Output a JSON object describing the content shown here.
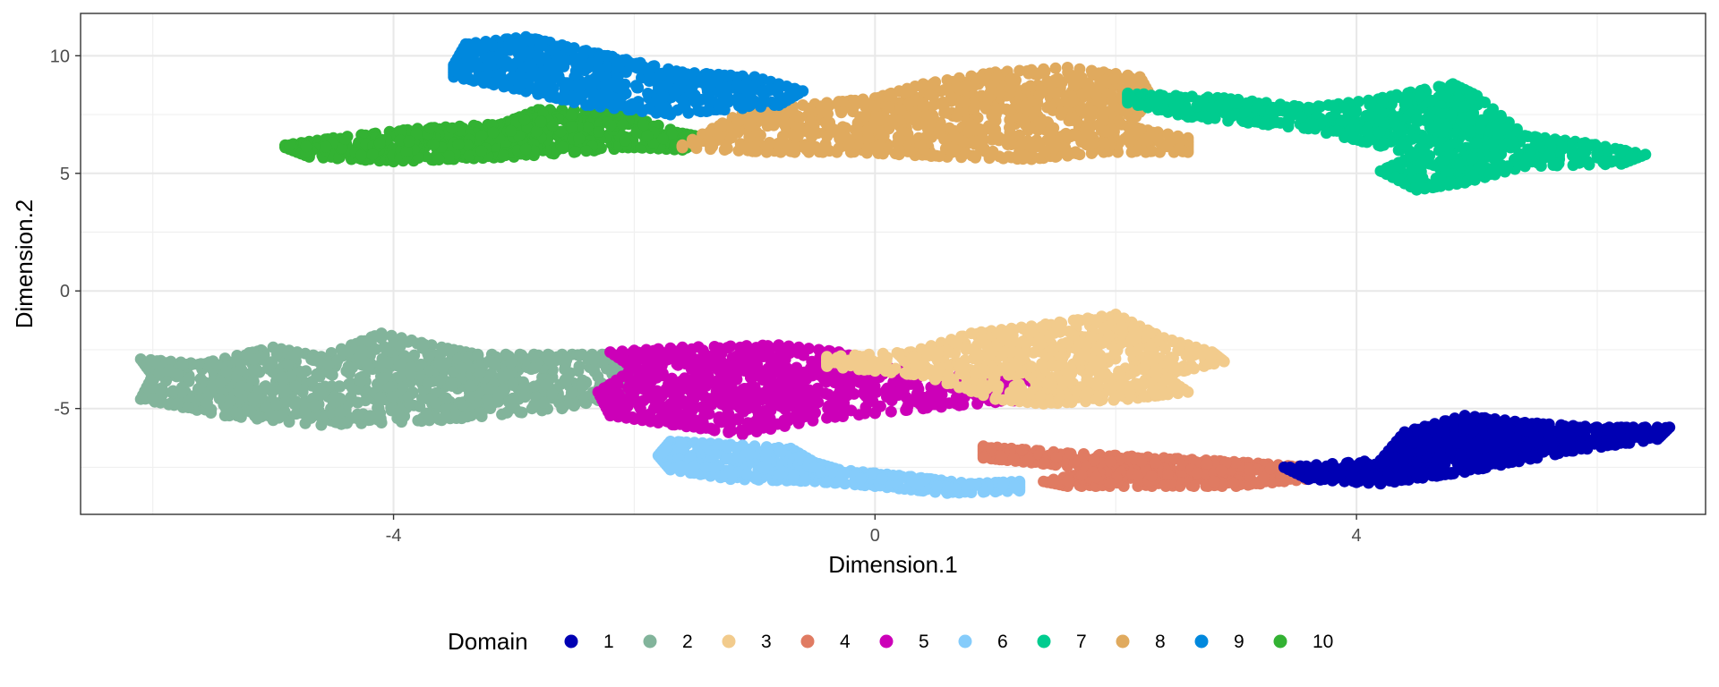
{
  "chart_data": {
    "type": "scatter",
    "title": "",
    "xlabel": "Dimension.1",
    "ylabel": "Dimension.2",
    "xlim": [
      -6.6,
      6.9
    ],
    "ylim": [
      -9.5,
      11.8
    ],
    "x_major_ticks": [
      -4,
      0,
      4
    ],
    "x_minor_ticks": [
      -6,
      -2,
      2,
      6
    ],
    "y_major_ticks": [
      -5,
      0,
      5,
      10
    ],
    "y_minor_ticks": [
      -7.5,
      -2.5,
      2.5,
      7.5
    ],
    "x_tick_labels": [
      "-4",
      "0",
      "4"
    ],
    "y_tick_labels": [
      "-5",
      "0",
      "5",
      "10"
    ],
    "grid": true,
    "legend": {
      "title": "Domain",
      "position": "bottom",
      "entries": [
        {
          "label": "1",
          "color": "#0000b3"
        },
        {
          "label": "2",
          "color": "#82b49b"
        },
        {
          "label": "3",
          "color": "#f2cb8c"
        },
        {
          "label": "4",
          "color": "#e07b62"
        },
        {
          "label": "5",
          "color": "#cc00b8"
        },
        {
          "label": "6",
          "color": "#85ccfb"
        },
        {
          "label": "7",
          "color": "#00cc8f"
        },
        {
          "label": "8",
          "color": "#e0aa5e"
        },
        {
          "label": "9",
          "color": "#0088dd"
        },
        {
          "label": "10",
          "color": "#33b233"
        }
      ]
    },
    "clusters": [
      {
        "domain": "2",
        "color": "#82b49b",
        "n": 950,
        "shape": [
          [
            -6.1,
            -2.9
          ],
          [
            -5.6,
            -3.1
          ],
          [
            -5.0,
            -2.4
          ],
          [
            -4.6,
            -2.8
          ],
          [
            -4.1,
            -1.8
          ],
          [
            -3.6,
            -2.4
          ],
          [
            -3.3,
            -2.7
          ],
          [
            -2.6,
            -2.7
          ],
          [
            -2.1,
            -2.7
          ],
          [
            -2.0,
            -4.3
          ],
          [
            -2.6,
            -5.0
          ],
          [
            -3.6,
            -5.5
          ],
          [
            -4.6,
            -5.7
          ],
          [
            -5.4,
            -5.3
          ],
          [
            -6.1,
            -4.6
          ],
          [
            -6.0,
            -3.6
          ]
        ]
      },
      {
        "domain": "5",
        "color": "#cc00b8",
        "n": 700,
        "shape": [
          [
            -2.2,
            -2.6
          ],
          [
            -1.6,
            -2.4
          ],
          [
            -0.8,
            -2.3
          ],
          [
            -0.3,
            -2.6
          ],
          [
            0.2,
            -3.4
          ],
          [
            0.8,
            -3.6
          ],
          [
            1.4,
            -3.8
          ],
          [
            1.3,
            -4.6
          ],
          [
            0.4,
            -5.0
          ],
          [
            -0.4,
            -5.4
          ],
          [
            -1.1,
            -6.1
          ],
          [
            -1.8,
            -5.6
          ],
          [
            -2.2,
            -5.3
          ],
          [
            -2.3,
            -4.3
          ],
          [
            -2.0,
            -3.3
          ]
        ]
      },
      {
        "domain": "3",
        "color": "#f2cb8c",
        "n": 650,
        "shape": [
          [
            -0.4,
            -2.8
          ],
          [
            0.3,
            -2.6
          ],
          [
            0.8,
            -1.8
          ],
          [
            1.3,
            -1.5
          ],
          [
            2.0,
            -1.0
          ],
          [
            2.4,
            -2.0
          ],
          [
            2.8,
            -2.6
          ],
          [
            2.9,
            -3.0
          ],
          [
            2.4,
            -3.6
          ],
          [
            2.6,
            -4.3
          ],
          [
            2.1,
            -4.6
          ],
          [
            1.4,
            -4.8
          ],
          [
            1.0,
            -4.6
          ],
          [
            0.4,
            -3.6
          ],
          [
            -0.4,
            -3.2
          ]
        ]
      },
      {
        "domain": "6",
        "color": "#85ccfb",
        "n": 380,
        "shape": [
          [
            -1.7,
            -6.4
          ],
          [
            -1.3,
            -6.5
          ],
          [
            -0.7,
            -6.7
          ],
          [
            -0.5,
            -7.3
          ],
          [
            -0.3,
            -7.6
          ],
          [
            0.3,
            -7.9
          ],
          [
            0.8,
            -8.2
          ],
          [
            1.2,
            -8.1
          ],
          [
            1.2,
            -8.5
          ],
          [
            0.6,
            -8.6
          ],
          [
            0.0,
            -8.3
          ],
          [
            -0.5,
            -8.1
          ],
          [
            -1.2,
            -8.0
          ],
          [
            -1.7,
            -7.6
          ],
          [
            -1.8,
            -7.0
          ]
        ]
      },
      {
        "domain": "4",
        "color": "#e07b62",
        "n": 420,
        "shape": [
          [
            0.9,
            -6.6
          ],
          [
            1.6,
            -6.9
          ],
          [
            2.4,
            -7.1
          ],
          [
            3.1,
            -7.3
          ],
          [
            3.6,
            -7.5
          ],
          [
            3.6,
            -8.0
          ],
          [
            3.0,
            -8.3
          ],
          [
            2.3,
            -8.3
          ],
          [
            1.6,
            -8.3
          ],
          [
            1.4,
            -8.1
          ],
          [
            1.9,
            -7.6
          ],
          [
            1.3,
            -7.3
          ],
          [
            0.9,
            -7.1
          ]
        ]
      },
      {
        "domain": "1",
        "color": "#0000b3",
        "n": 800,
        "shape": [
          [
            3.4,
            -7.5
          ],
          [
            4.2,
            -7.2
          ],
          [
            4.4,
            -6.0
          ],
          [
            4.9,
            -5.3
          ],
          [
            5.4,
            -5.6
          ],
          [
            6.0,
            -5.8
          ],
          [
            6.6,
            -5.8
          ],
          [
            6.5,
            -6.3
          ],
          [
            5.8,
            -6.8
          ],
          [
            4.9,
            -7.7
          ],
          [
            4.2,
            -8.2
          ],
          [
            3.6,
            -8.0
          ]
        ]
      },
      {
        "domain": "10",
        "color": "#33b233",
        "n": 650,
        "shape": [
          [
            -4.9,
            6.2
          ],
          [
            -4.5,
            6.5
          ],
          [
            -3.8,
            6.9
          ],
          [
            -3.1,
            7.1
          ],
          [
            -2.8,
            7.7
          ],
          [
            -2.2,
            7.7
          ],
          [
            -1.6,
            6.7
          ],
          [
            -1.4,
            6.5
          ],
          [
            -1.6,
            6.0
          ],
          [
            -2.0,
            6.1
          ],
          [
            -3.0,
            5.7
          ],
          [
            -4.0,
            5.5
          ],
          [
            -4.7,
            5.7
          ],
          [
            -4.9,
            6.1
          ]
        ]
      },
      {
        "domain": "8",
        "color": "#e0aa5e",
        "n": 900,
        "shape": [
          [
            -1.6,
            6.2
          ],
          [
            -1.1,
            7.6
          ],
          [
            -0.6,
            7.9
          ],
          [
            0.0,
            8.2
          ],
          [
            0.4,
            8.8
          ],
          [
            1.0,
            9.3
          ],
          [
            1.6,
            9.5
          ],
          [
            2.2,
            9.1
          ],
          [
            2.3,
            8.2
          ],
          [
            2.1,
            7.0
          ],
          [
            2.6,
            6.5
          ],
          [
            2.6,
            5.9
          ],
          [
            1.9,
            5.9
          ],
          [
            1.3,
            5.6
          ],
          [
            0.6,
            5.7
          ],
          [
            -0.2,
            5.9
          ],
          [
            -0.9,
            5.9
          ],
          [
            -1.6,
            6.1
          ]
        ]
      },
      {
        "domain": "9",
        "color": "#0088dd",
        "n": 550,
        "shape": [
          [
            -3.4,
            10.5
          ],
          [
            -2.9,
            10.8
          ],
          [
            -2.3,
            10.1
          ],
          [
            -1.6,
            9.3
          ],
          [
            -1.0,
            9.1
          ],
          [
            -0.6,
            8.5
          ],
          [
            -0.8,
            7.9
          ],
          [
            -1.7,
            7.5
          ],
          [
            -2.4,
            7.9
          ],
          [
            -3.0,
            8.6
          ],
          [
            -3.5,
            9.1
          ],
          [
            -3.5,
            9.6
          ]
        ]
      },
      {
        "domain": "7",
        "color": "#00cc8f",
        "n": 750,
        "shape": [
          [
            2.1,
            8.4
          ],
          [
            2.9,
            8.2
          ],
          [
            3.6,
            7.8
          ],
          [
            4.1,
            8.1
          ],
          [
            4.8,
            8.8
          ],
          [
            5.0,
            8.3
          ],
          [
            5.4,
            6.6
          ],
          [
            5.9,
            6.3
          ],
          [
            6.4,
            5.8
          ],
          [
            6.2,
            5.4
          ],
          [
            5.4,
            5.3
          ],
          [
            4.9,
            4.6
          ],
          [
            4.5,
            4.3
          ],
          [
            4.2,
            5.1
          ],
          [
            4.5,
            5.8
          ],
          [
            3.6,
            6.9
          ],
          [
            2.6,
            7.4
          ],
          [
            2.1,
            8.0
          ]
        ]
      }
    ]
  }
}
